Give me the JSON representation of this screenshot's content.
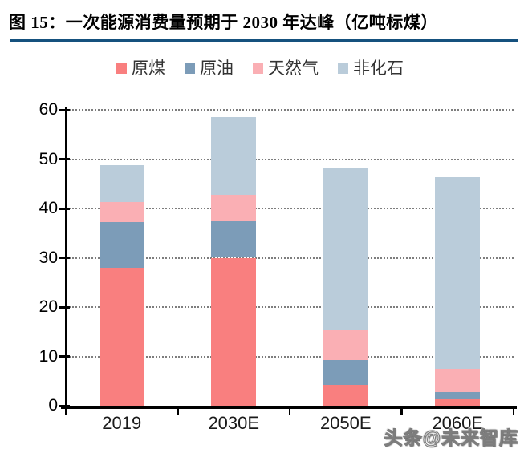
{
  "figure": {
    "title": "图 15：一次能源消费量预期于 2030 年达峰（亿吨标煤）",
    "accent_color": "#15517E"
  },
  "watermark": "头条@未来智库",
  "chart_data": {
    "type": "bar",
    "stacked": true,
    "title": "一次能源消费量预期于 2030 年达峰",
    "unit": "亿吨标煤",
    "categories": [
      "2019",
      "2030E",
      "2050E",
      "2060E"
    ],
    "series": [
      {
        "name": "原煤",
        "color": "#F97F7F",
        "values": [
          28.0,
          30.0,
          4.2,
          1.3
        ]
      },
      {
        "name": "原油",
        "color": "#7C9CB8",
        "values": [
          9.3,
          7.4,
          5.0,
          1.5
        ]
      },
      {
        "name": "天然气",
        "color": "#FAAFB4",
        "values": [
          4.0,
          5.4,
          6.3,
          4.7
        ]
      },
      {
        "name": "非化石",
        "color": "#BACCDA",
        "values": [
          7.4,
          15.8,
          32.8,
          38.9
        ]
      }
    ],
    "totals": [
      48.7,
      58.6,
      48.3,
      46.4
    ],
    "ylim": [
      0,
      60
    ],
    "yticks": [
      0,
      10,
      20,
      30,
      40,
      50,
      60
    ],
    "grid": "horizontal-dotted",
    "legend_position": "top",
    "xlabel": "",
    "ylabel": ""
  }
}
